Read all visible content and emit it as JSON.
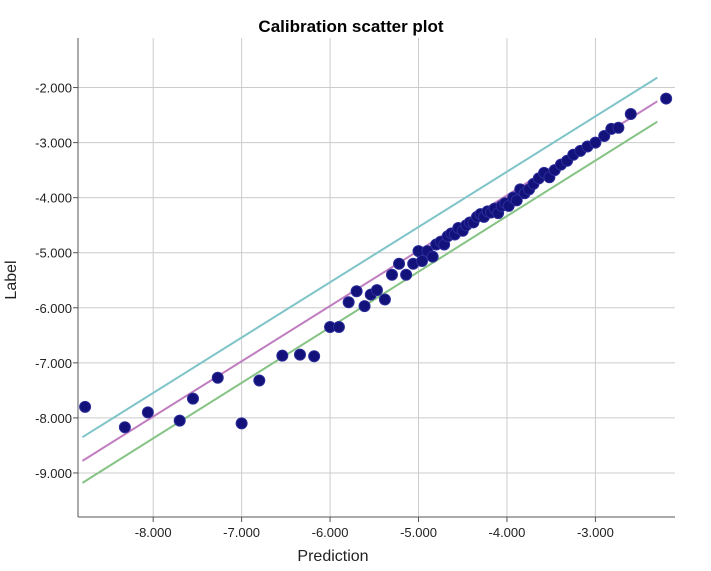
{
  "chart_data": {
    "type": "scatter",
    "title": "Calibration scatter plot",
    "xlabel": "Prediction",
    "ylabel": "Label",
    "xlim": [
      -8.85,
      -2.1
    ],
    "ylim": [
      -9.8,
      -1.1
    ],
    "x_ticks": [
      -8.0,
      -7.0,
      -6.0,
      -5.0,
      -4.0,
      -3.0
    ],
    "x_tick_labels": [
      "-8.000",
      "-7.000",
      "-6.000",
      "-5.000",
      "-4.000",
      "-3.000"
    ],
    "y_ticks": [
      -2.0,
      -3.0,
      -4.0,
      -5.0,
      -6.0,
      -7.0,
      -8.0,
      -9.0
    ],
    "y_tick_labels": [
      "-2.000",
      "-3.000",
      "-4.000",
      "-5.000",
      "-6.000",
      "-7.000",
      "-8.000",
      "-9.000"
    ],
    "grid": true,
    "points": {
      "color": "#12127a",
      "x": [
        -8.77,
        -8.32,
        -8.06,
        -7.7,
        -7.55,
        -7.27,
        -7.0,
        -6.8,
        -6.54,
        -6.34,
        -6.18,
        -6.0,
        -5.9,
        -5.79,
        -5.7,
        -5.61,
        -5.54,
        -5.47,
        -5.38,
        -5.3,
        -5.22,
        -5.14,
        -5.06,
        -5.0,
        -4.96,
        -4.9,
        -4.84,
        -4.8,
        -4.75,
        -4.71,
        -4.67,
        -4.63,
        -4.59,
        -4.55,
        -4.5,
        -4.46,
        -4.42,
        -4.38,
        -4.34,
        -4.3,
        -4.26,
        -4.22,
        -4.18,
        -4.14,
        -4.1,
        -4.06,
        -4.02,
        -3.98,
        -3.93,
        -3.89,
        -3.85,
        -3.8,
        -3.75,
        -3.7,
        -3.64,
        -3.58,
        -3.52,
        -3.46,
        -3.39,
        -3.32,
        -3.25,
        -3.17,
        -3.09,
        -3.0,
        -2.9,
        -2.82,
        -2.74,
        -2.6,
        -2.2
      ],
      "y": [
        -7.8,
        -8.17,
        -7.9,
        -8.05,
        -7.65,
        -7.27,
        -8.1,
        -7.32,
        -6.87,
        -6.85,
        -6.88,
        -6.35,
        -6.35,
        -5.9,
        -5.7,
        -5.97,
        -5.76,
        -5.68,
        -5.85,
        -5.4,
        -5.2,
        -5.4,
        -5.2,
        -4.97,
        -5.15,
        -4.97,
        -5.07,
        -4.85,
        -4.8,
        -4.85,
        -4.7,
        -4.65,
        -4.67,
        -4.55,
        -4.6,
        -4.5,
        -4.45,
        -4.45,
        -4.35,
        -4.3,
        -4.35,
        -4.25,
        -4.27,
        -4.2,
        -4.28,
        -4.15,
        -4.1,
        -4.15,
        -4.0,
        -4.05,
        -3.85,
        -3.92,
        -3.85,
        -3.75,
        -3.65,
        -3.55,
        -3.63,
        -3.5,
        -3.4,
        -3.33,
        -3.22,
        -3.15,
        -3.07,
        -3.0,
        -2.88,
        -2.75,
        -2.73,
        -2.48,
        -2.2
      ]
    },
    "lines": [
      {
        "color": "#7fc4c8",
        "x": [
          -8.8,
          -2.3
        ],
        "y": [
          -8.35,
          -1.82
        ]
      },
      {
        "color": "#c07ec0",
        "x": [
          -8.8,
          -2.3
        ],
        "y": [
          -8.78,
          -2.25
        ]
      },
      {
        "color": "#86c384",
        "x": [
          -8.8,
          -2.3
        ],
        "y": [
          -9.18,
          -2.62
        ]
      }
    ]
  }
}
